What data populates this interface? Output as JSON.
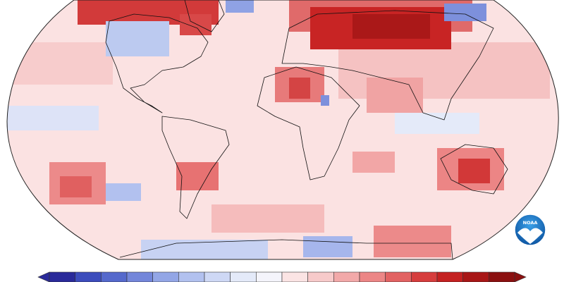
{
  "logo": {
    "text": "NOAA"
  },
  "colorbar": {
    "colors": [
      "#2a2a9a",
      "#3c4cbc",
      "#5569cc",
      "#7386da",
      "#93a6e6",
      "#b2c1ef",
      "#ced8f5",
      "#e4eaf9",
      "#f4f4fb",
      "#fbe4e4",
      "#f7caca",
      "#f2a9a9",
      "#ec8686",
      "#e26262",
      "#d63d3d",
      "#c42121",
      "#a81616",
      "#8b1010"
    ]
  }
}
